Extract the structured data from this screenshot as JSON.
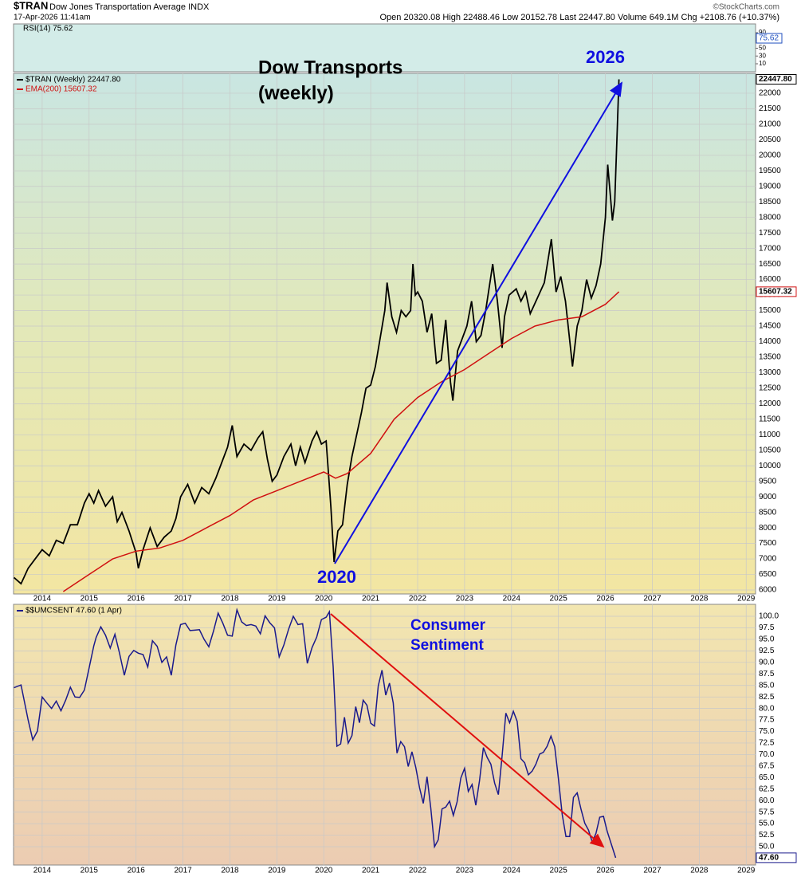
{
  "header": {
    "symbol": "$TRAN",
    "description": "Dow Jones Transportation Average INDX",
    "date": "17-Apr-2026 11:41am",
    "quote": "Open 20320.08 High 22488.46 Low 20152.78 Last 22447.80 Volume 649.1M Chg +2108.76 (+10.37%)",
    "credit": "©StockCharts.com"
  },
  "chart_data": [
    {
      "type": "indicator",
      "ylim": [
        -10.5,
        112.6
      ],
      "yticks": [
        10,
        30,
        50,
        70,
        90
      ],
      "series": [
        {
          "name": "RSI(14) 75.62",
          "color": "#1f4fbf",
          "values": [
            75.62
          ],
          "badge": "75.62"
        }
      ]
    },
    {
      "type": "line",
      "xlim": [
        2013.39,
        2029.2
      ],
      "xticks": [
        2014,
        2015,
        2016,
        2017,
        2018,
        2019,
        2020,
        2021,
        2022,
        2023,
        2024,
        2025,
        2026,
        2027,
        2028,
        2029
      ],
      "ylim": [
        5872,
        22640
      ],
      "yticks": [
        6000,
        6500,
        7000,
        7500,
        8000,
        8500,
        9000,
        9500,
        10000,
        10500,
        11000,
        11500,
        12000,
        12500,
        13000,
        13500,
        14000,
        14500,
        15000,
        15500,
        16000,
        16500,
        17000,
        17500,
        18000,
        18500,
        19000,
        19500,
        20000,
        20500,
        21000,
        21500,
        22000
      ],
      "grid": true,
      "annotations": [
        "Dow Transports",
        "(weekly)",
        "2026",
        "2020"
      ],
      "series": [
        {
          "name": "$TRAN (Weekly) 22447.80",
          "color": "#000000",
          "badge": "22447.80",
          "x": [
            2013.4,
            2013.55,
            2013.7,
            2013.85,
            2014.0,
            2014.15,
            2014.3,
            2014.45,
            2014.6,
            2014.75,
            2014.9,
            2015.0,
            2015.1,
            2015.2,
            2015.35,
            2015.5,
            2015.6,
            2015.7,
            2015.85,
            2016.0,
            2016.05,
            2016.15,
            2016.3,
            2016.45,
            2016.6,
            2016.75,
            2016.85,
            2016.95,
            2017.1,
            2017.25,
            2017.4,
            2017.55,
            2017.7,
            2017.85,
            2017.95,
            2018.05,
            2018.15,
            2018.3,
            2018.45,
            2018.6,
            2018.7,
            2018.8,
            2018.9,
            2019.0,
            2019.15,
            2019.3,
            2019.4,
            2019.5,
            2019.6,
            2019.75,
            2019.85,
            2019.95,
            2020.05,
            2020.15,
            2020.22,
            2020.3,
            2020.4,
            2020.5,
            2020.6,
            2020.7,
            2020.8,
            2020.9,
            2021.0,
            2021.1,
            2021.2,
            2021.3,
            2021.35,
            2021.45,
            2021.55,
            2021.65,
            2021.75,
            2021.85,
            2021.9,
            2021.95,
            2022.0,
            2022.1,
            2022.2,
            2022.3,
            2022.4,
            2022.5,
            2022.6,
            2022.7,
            2022.75,
            2022.85,
            2022.95,
            2023.05,
            2023.15,
            2023.25,
            2023.35,
            2023.45,
            2023.55,
            2023.6,
            2023.7,
            2023.8,
            2023.85,
            2023.95,
            2024.1,
            2024.2,
            2024.3,
            2024.4,
            2024.55,
            2024.7,
            2024.85,
            2024.95,
            2025.05,
            2025.15,
            2025.25,
            2025.3,
            2025.4,
            2025.5,
            2025.6,
            2025.7,
            2025.8,
            2025.9,
            2026.0,
            2026.05,
            2026.1,
            2026.15,
            2026.2,
            2026.25,
            2026.29
          ],
          "values": [
            6400,
            6200,
            6700,
            7000,
            7300,
            7100,
            7600,
            7500,
            8100,
            8100,
            8800,
            9100,
            8800,
            9200,
            8700,
            9000,
            8200,
            8500,
            7900,
            7200,
            6700,
            7300,
            8000,
            7400,
            7700,
            7900,
            8300,
            9000,
            9400,
            8800,
            9300,
            9100,
            9600,
            10200,
            10600,
            11300,
            10300,
            10700,
            10500,
            10900,
            11100,
            10200,
            9500,
            9700,
            10300,
            10700,
            10000,
            10600,
            10100,
            10800,
            11100,
            10700,
            10800,
            8700,
            6900,
            7900,
            8100,
            9400,
            10300,
            11000,
            11700,
            12500,
            12600,
            13200,
            14100,
            15000,
            15900,
            14800,
            14300,
            15000,
            14800,
            15000,
            16500,
            15500,
            15600,
            15300,
            14300,
            14900,
            13300,
            13400,
            14700,
            12700,
            12100,
            13700,
            14100,
            14500,
            15300,
            14000,
            14200,
            15000,
            16000,
            16500,
            15300,
            13800,
            14800,
            15500,
            15700,
            15300,
            15600,
            14900,
            15400,
            15900,
            17300,
            15600,
            16100,
            15300,
            13900,
            13200,
            14500,
            15000,
            16000,
            15400,
            15800,
            16500,
            18000,
            19700,
            18800,
            17900,
            18500,
            20700,
            22447.8
          ]
        },
        {
          "name": "EMA(200) 15607.32",
          "color": "#d01010",
          "badge": "15607.32",
          "x": [
            2014.45,
            2015.0,
            2015.5,
            2016.0,
            2016.5,
            2017.0,
            2017.5,
            2018.0,
            2018.5,
            2019.0,
            2019.5,
            2020.0,
            2020.25,
            2020.5,
            2021.0,
            2021.5,
            2022.0,
            2022.5,
            2023.0,
            2023.5,
            2024.0,
            2024.5,
            2025.0,
            2025.5,
            2026.0,
            2026.29
          ],
          "values": [
            5950,
            6500,
            7000,
            7250,
            7350,
            7600,
            8000,
            8400,
            8900,
            9200,
            9500,
            9800,
            9600,
            9750,
            10400,
            11500,
            12200,
            12700,
            13100,
            13600,
            14100,
            14500,
            14700,
            14800,
            15200,
            15607.32
          ]
        }
      ]
    },
    {
      "type": "line",
      "xlim": [
        2013.39,
        2029.2
      ],
      "xticks": [
        2014,
        2015,
        2016,
        2017,
        2018,
        2019,
        2020,
        2021,
        2022,
        2023,
        2024,
        2025,
        2026,
        2027,
        2028,
        2029
      ],
      "ylim": [
        46.02,
        102.6
      ],
      "yticks": [
        {
          "value": 50,
          "label": "50.0"
        },
        52.5,
        {
          "value": 55,
          "label": "55.0"
        },
        57.5,
        {
          "value": 60,
          "label": "60.0"
        },
        62.5,
        {
          "value": 65,
          "label": "65.0"
        },
        67.5,
        {
          "value": 70,
          "label": "70.0"
        },
        72.5,
        {
          "value": 75,
          "label": "75.0"
        },
        77.5,
        {
          "value": 80,
          "label": "80.0"
        },
        82.5,
        {
          "value": 85,
          "label": "85.0"
        },
        87.5,
        {
          "value": 90,
          "label": "90.0"
        },
        92.5,
        {
          "value": 95,
          "label": "95.0"
        },
        97.5,
        {
          "value": 100,
          "label": "100.0"
        }
      ],
      "grid": true,
      "annotations": [
        "Consumer",
        "Sentiment"
      ],
      "series": [
        {
          "name": "$$UMCSENT 47.60 (1 Apr)",
          "color": "#1a1a8c",
          "badge": "47.60",
          "x": [
            2013.4,
            2013.55,
            2013.7,
            2013.8,
            2013.9,
            2014.0,
            2014.1,
            2014.2,
            2014.3,
            2014.4,
            2014.5,
            2014.6,
            2014.7,
            2014.8,
            2014.9,
            2015.0,
            2015.1,
            2015.15,
            2015.25,
            2015.35,
            2015.45,
            2015.55,
            2015.65,
            2015.75,
            2015.85,
            2015.95,
            2016.05,
            2016.15,
            2016.25,
            2016.35,
            2016.45,
            2016.55,
            2016.65,
            2016.75,
            2016.85,
            2016.95,
            2017.05,
            2017.15,
            2017.25,
            2017.35,
            2017.45,
            2017.55,
            2017.65,
            2017.75,
            2017.85,
            2017.95,
            2018.05,
            2018.15,
            2018.25,
            2018.35,
            2018.45,
            2018.55,
            2018.65,
            2018.75,
            2018.85,
            2018.95,
            2019.05,
            2019.15,
            2019.25,
            2019.35,
            2019.45,
            2019.55,
            2019.65,
            2019.75,
            2019.85,
            2019.95,
            2020.05,
            2020.12,
            2020.2,
            2020.28,
            2020.36,
            2020.44,
            2020.52,
            2020.6,
            2020.68,
            2020.76,
            2020.84,
            2020.92,
            2021.0,
            2021.08,
            2021.16,
            2021.24,
            2021.32,
            2021.4,
            2021.48,
            2021.56,
            2021.64,
            2021.72,
            2021.8,
            2021.88,
            2021.96,
            2022.04,
            2022.12,
            2022.2,
            2022.28,
            2022.36,
            2022.44,
            2022.52,
            2022.6,
            2022.68,
            2022.76,
            2022.84,
            2022.92,
            2023.0,
            2023.08,
            2023.16,
            2023.24,
            2023.32,
            2023.4,
            2023.48,
            2023.56,
            2023.64,
            2023.72,
            2023.8,
            2023.88,
            2023.96,
            2024.04,
            2024.12,
            2024.2,
            2024.28,
            2024.36,
            2024.44,
            2024.52,
            2024.6,
            2024.68,
            2024.76,
            2024.84,
            2024.92,
            2025.0,
            2025.08,
            2025.16,
            2025.24,
            2025.32,
            2025.4,
            2025.48,
            2025.56,
            2025.64,
            2025.72,
            2025.8,
            2025.88,
            2025.96,
            2026.04,
            2026.22
          ],
          "values": [
            84.5,
            85.1,
            77.5,
            73.2,
            75.1,
            82.5,
            81.2,
            80.0,
            81.6,
            79.5,
            81.8,
            84.6,
            82.5,
            82.4,
            84.0,
            88.8,
            93.6,
            95.4,
            97.7,
            95.9,
            93.1,
            96.1,
            91.9,
            87.2,
            91.3,
            92.6,
            92.0,
            91.7,
            89.0,
            94.7,
            93.5,
            90.0,
            91.2,
            87.2,
            93.8,
            98.2,
            98.5,
            96.9,
            97.0,
            97.1,
            95.0,
            93.4,
            96.8,
            100.7,
            98.5,
            95.9,
            95.7,
            101.4,
            98.8,
            98.0,
            98.2,
            97.9,
            96.2,
            100.1,
            98.6,
            97.5,
            91.2,
            93.8,
            97.2,
            100.0,
            98.2,
            98.4,
            89.8,
            93.2,
            95.5,
            99.3,
            99.8,
            101.0,
            89.1,
            71.8,
            72.3,
            78.1,
            72.5,
            74.1,
            80.4,
            76.9,
            81.8,
            80.7,
            76.8,
            76.2,
            84.9,
            88.3,
            82.9,
            85.5,
            81.2,
            70.3,
            72.8,
            71.7,
            67.4,
            70.6,
            67.2,
            62.8,
            59.4,
            65.2,
            58.4,
            50.0,
            51.5,
            58.2,
            58.6,
            59.9,
            56.8,
            59.7,
            64.9,
            67.0,
            62.0,
            63.5,
            59.0,
            64.4,
            71.5,
            69.4,
            67.9,
            63.8,
            61.3,
            69.7,
            79.0,
            76.9,
            79.4,
            77.2,
            69.1,
            68.2,
            65.6,
            66.4,
            67.9,
            70.1,
            70.5,
            71.8,
            74.0,
            71.7,
            64.7,
            57.0,
            52.2,
            52.2,
            60.7,
            61.7,
            58.2,
            55.1,
            53.6,
            51.0,
            52.9,
            56.4,
            56.6,
            53.3,
            47.6
          ]
        }
      ]
    }
  ]
}
